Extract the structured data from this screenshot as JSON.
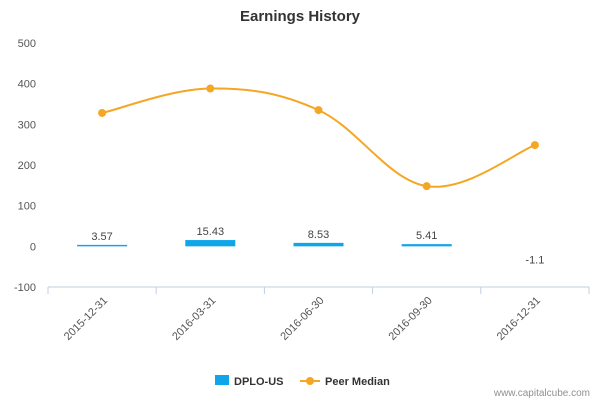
{
  "chart_data": {
    "type": "bar",
    "title": "Earnings History",
    "categories": [
      "2015-12-31",
      "2016-03-31",
      "2016-06-30",
      "2016-09-30",
      "2016-12-31"
    ],
    "ylim": [
      -100,
      500
    ],
    "yticks": [
      -100,
      0,
      100,
      200,
      300,
      400,
      500
    ],
    "grid": false,
    "legend_position": "bottom",
    "series": [
      {
        "name": "DPLO-US",
        "type": "bar",
        "color": "#0ea5e9",
        "values": [
          3.57,
          15.43,
          8.53,
          5.41,
          -1.1
        ],
        "labels": [
          "3.57",
          "15.43",
          "8.53",
          "5.41",
          "-1.1"
        ]
      },
      {
        "name": "Peer Median",
        "type": "line",
        "color": "#f5a623",
        "values": [
          328,
          388,
          335,
          148,
          249
        ]
      }
    ]
  },
  "credit": "www.capitalcube.com"
}
